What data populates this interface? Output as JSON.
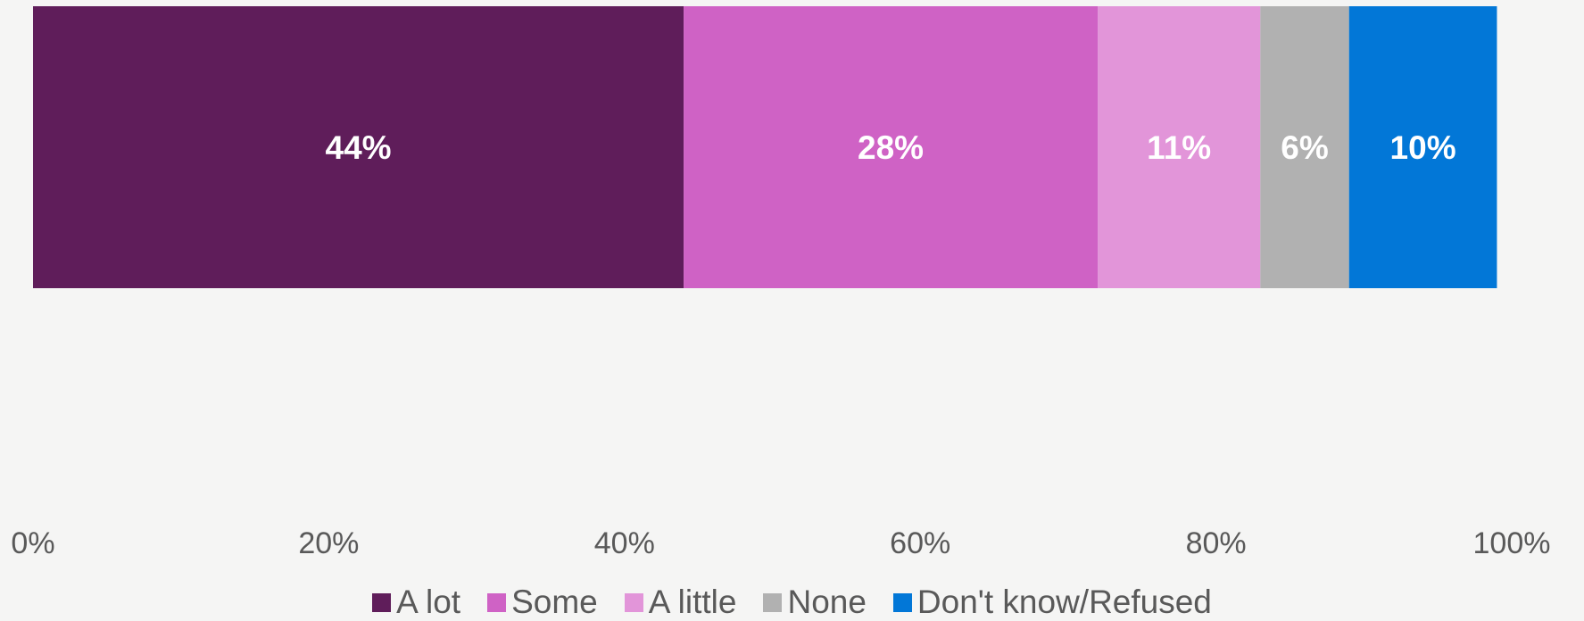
{
  "chart_data": {
    "type": "bar",
    "orientation": "horizontal",
    "stacked": true,
    "categories": [
      ""
    ],
    "series": [
      {
        "name": "A lot",
        "values": [
          44
        ],
        "color": "#5f1d5a",
        "label": "44%"
      },
      {
        "name": "Some",
        "values": [
          28
        ],
        "color": "#cf62c5",
        "label": "28%"
      },
      {
        "name": "A little",
        "values": [
          11
        ],
        "color": "#e295d9",
        "label": "11%"
      },
      {
        "name": "None",
        "values": [
          6
        ],
        "color": "#b1b1b1",
        "label": "6%"
      },
      {
        "name": "Don't know/Refused",
        "values": [
          10
        ],
        "color": "#0277d7",
        "label": "10%"
      }
    ],
    "xlim": [
      0,
      100
    ],
    "xticks": [
      "0%",
      "20%",
      "40%",
      "60%",
      "80%",
      "100%"
    ],
    "grid": false,
    "legend": "bottom",
    "title": "",
    "xlabel": "",
    "ylabel": ""
  }
}
